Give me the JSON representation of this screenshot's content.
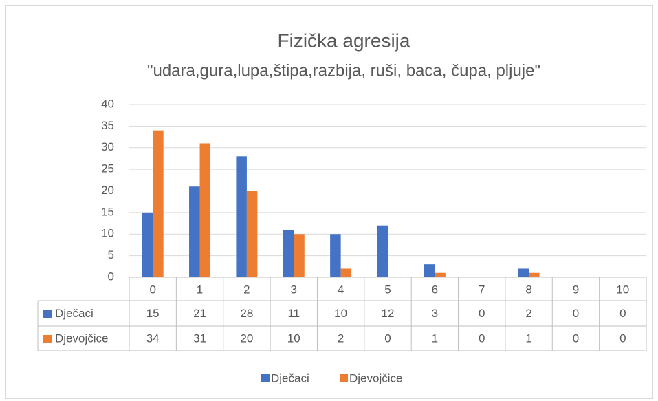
{
  "chart_data": {
    "type": "bar",
    "title": "Fizička agresija",
    "subtitle": "\"udara,gura,lupa,štipa,razbija, ruši, baca, čupa, pljuje\"",
    "categories": [
      "0",
      "1",
      "2",
      "3",
      "4",
      "5",
      "6",
      "7",
      "8",
      "9",
      "10"
    ],
    "series": [
      {
        "name": "Dječaci",
        "color": "#4472c4",
        "values": [
          15,
          21,
          28,
          11,
          10,
          12,
          3,
          0,
          2,
          0,
          0
        ]
      },
      {
        "name": "Djevojčice",
        "color": "#ed7d31",
        "values": [
          34,
          31,
          20,
          10,
          2,
          0,
          1,
          0,
          1,
          0,
          0
        ]
      }
    ],
    "ylim": [
      0,
      40
    ],
    "yticks": [
      0,
      5,
      10,
      15,
      20,
      25,
      30,
      35,
      40
    ],
    "grid": true,
    "legend": "bottom",
    "data_table": true
  }
}
